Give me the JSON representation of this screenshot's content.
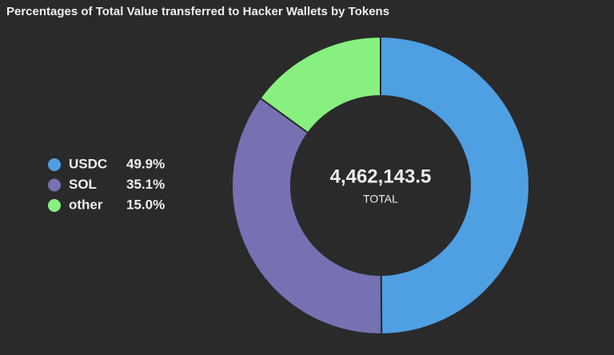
{
  "chart_data": {
    "type": "donut",
    "title": "Percentages of Total Value transferred to Hacker Wallets by Tokens",
    "categories": [
      "USDC",
      "SOL",
      "other"
    ],
    "values": [
      49.9,
      35.1,
      15.0
    ],
    "value_labels": [
      "49.9%",
      "35.1%",
      "15.0%"
    ],
    "colors": [
      "#4f9fe3",
      "#7571b3",
      "#87f07f"
    ],
    "center_value": "4,462,143.5",
    "center_label": "TOTAL",
    "legend": "left"
  }
}
